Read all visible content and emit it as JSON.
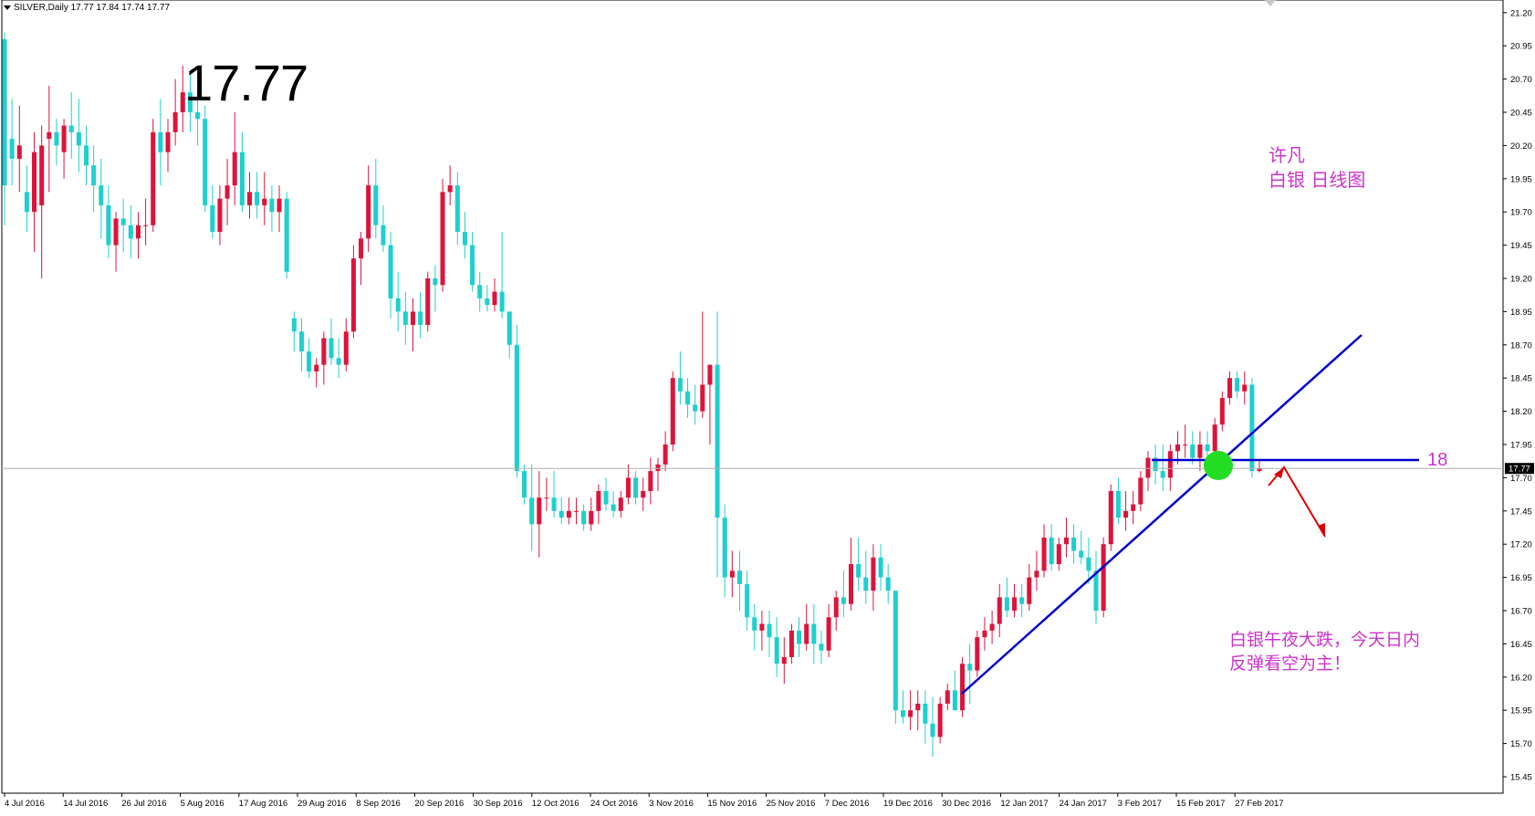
{
  "header": {
    "symbol_info": "SILVER,Daily  17.77 17.84 17.74 17.77"
  },
  "annotations": {
    "big_price": "17.77",
    "author": "许凡",
    "chart_title": "白银 日线图",
    "comment_line1": "白银午夜大跌，今天日内",
    "comment_line2": "反弹看空为主！",
    "level_label": "18"
  },
  "price_scale": {
    "labels": [
      "21.20",
      "20.95",
      "20.70",
      "20.45",
      "20.20",
      "19.95",
      "19.70",
      "19.45",
      "19.20",
      "18.95",
      "18.70",
      "18.45",
      "18.20",
      "17.95",
      "17.70",
      "17.45",
      "17.20",
      "16.95",
      "16.70",
      "16.45",
      "16.20",
      "15.95",
      "15.70",
      "15.45"
    ],
    "current_price": "17.77"
  },
  "time_scale": {
    "labels": [
      "4 Jul 2016",
      "14 Jul 2016",
      "26 Jul 2016",
      "5 Aug 2016",
      "17 Aug 2016",
      "29 Aug 2016",
      "8 Sep 2016",
      "20 Sep 2016",
      "30 Sep 2016",
      "12 Oct 2016",
      "24 Oct 2016",
      "3 Nov 2016",
      "15 Nov 2016",
      "25 Nov 2016",
      "7 Dec 2016",
      "19 Dec 2016",
      "30 Dec 2016",
      "12 Jan 2017",
      "24 Jan 2017",
      "3 Feb 2017",
      "15 Feb 2017",
      "27 Feb 2017"
    ]
  },
  "colors": {
    "bull": "#dc143c",
    "bear": "#1fcfcf",
    "line": "#0000cc",
    "text_accent": "#cc33cc",
    "marker": "#22dd22",
    "arrow": "#dd0000",
    "current_line": "#b0b0b0"
  },
  "chart_data": {
    "type": "candlestick",
    "symbol": "SILVER",
    "timeframe": "Daily",
    "ylim": [
      15.4,
      21.3
    ],
    "ohlc": [
      [
        21.0,
        21.05,
        19.6,
        19.9
      ],
      [
        20.25,
        20.55,
        19.9,
        20.1
      ],
      [
        20.1,
        20.5,
        19.85,
        20.2
      ],
      [
        19.85,
        20.05,
        19.55,
        19.7
      ],
      [
        19.7,
        20.3,
        19.4,
        20.15
      ],
      [
        19.75,
        20.35,
        19.2,
        20.2
      ],
      [
        20.25,
        20.65,
        19.85,
        20.3
      ],
      [
        20.3,
        20.4,
        20.05,
        20.2
      ],
      [
        20.15,
        20.4,
        19.95,
        20.35
      ],
      [
        20.35,
        20.6,
        20.1,
        20.3
      ],
      [
        20.3,
        20.55,
        20.0,
        20.2
      ],
      [
        20.2,
        20.35,
        19.9,
        20.05
      ],
      [
        20.05,
        20.2,
        19.7,
        19.9
      ],
      [
        19.9,
        20.1,
        19.5,
        19.75
      ],
      [
        19.75,
        19.9,
        19.35,
        19.45
      ],
      [
        19.45,
        19.7,
        19.25,
        19.65
      ],
      [
        19.65,
        19.8,
        19.4,
        19.6
      ],
      [
        19.6,
        19.75,
        19.35,
        19.5
      ],
      [
        19.5,
        19.7,
        19.35,
        19.6
      ],
      [
        19.6,
        19.8,
        19.45,
        19.6
      ],
      [
        19.6,
        20.4,
        19.55,
        20.3
      ],
      [
        20.3,
        20.55,
        19.9,
        20.15
      ],
      [
        20.15,
        20.4,
        20.0,
        20.3
      ],
      [
        20.3,
        20.7,
        20.2,
        20.45
      ],
      [
        20.45,
        20.8,
        20.3,
        20.6
      ],
      [
        20.6,
        20.75,
        20.3,
        20.45
      ],
      [
        20.45,
        20.6,
        20.2,
        20.4
      ],
      [
        20.4,
        20.5,
        19.7,
        19.75
      ],
      [
        19.75,
        19.9,
        19.5,
        19.55
      ],
      [
        19.55,
        19.9,
        19.45,
        19.8
      ],
      [
        19.8,
        20.1,
        19.6,
        19.9
      ],
      [
        19.9,
        20.45,
        19.75,
        20.15
      ],
      [
        20.15,
        20.3,
        19.7,
        19.75
      ],
      [
        19.75,
        20.0,
        19.65,
        19.85
      ],
      [
        19.85,
        20.0,
        19.65,
        19.75
      ],
      [
        19.75,
        20.0,
        19.6,
        19.8
      ],
      [
        19.8,
        19.9,
        19.55,
        19.7
      ],
      [
        19.7,
        19.9,
        19.55,
        19.8
      ],
      [
        19.8,
        19.85,
        19.2,
        19.25
      ],
      [
        18.9,
        18.95,
        18.65,
        18.8
      ],
      [
        18.8,
        18.9,
        18.5,
        18.65
      ],
      [
        18.65,
        18.75,
        18.45,
        18.5
      ],
      [
        18.5,
        18.6,
        18.38,
        18.55
      ],
      [
        18.55,
        18.8,
        18.4,
        18.75
      ],
      [
        18.75,
        18.9,
        18.55,
        18.6
      ],
      [
        18.6,
        18.75,
        18.45,
        18.55
      ],
      [
        18.55,
        18.9,
        18.5,
        18.8
      ],
      [
        18.8,
        19.45,
        18.75,
        19.35
      ],
      [
        19.35,
        19.55,
        19.15,
        19.5
      ],
      [
        19.5,
        20.05,
        19.4,
        19.9
      ],
      [
        19.9,
        20.1,
        19.5,
        19.6
      ],
      [
        19.6,
        19.75,
        19.4,
        19.45
      ],
      [
        19.45,
        19.55,
        18.9,
        19.05
      ],
      [
        19.05,
        19.25,
        18.8,
        18.95
      ],
      [
        18.95,
        19.1,
        18.7,
        18.85
      ],
      [
        18.85,
        19.05,
        18.65,
        18.95
      ],
      [
        18.95,
        19.1,
        18.75,
        18.85
      ],
      [
        18.85,
        19.25,
        18.8,
        19.2
      ],
      [
        19.2,
        19.3,
        18.95,
        19.15
      ],
      [
        19.15,
        19.95,
        19.1,
        19.85
      ],
      [
        19.85,
        20.05,
        19.75,
        19.9
      ],
      [
        19.9,
        20.0,
        19.45,
        19.55
      ],
      [
        19.55,
        19.7,
        19.35,
        19.45
      ],
      [
        19.45,
        19.55,
        19.1,
        19.15
      ],
      [
        19.15,
        19.25,
        18.95,
        19.05
      ],
      [
        19.05,
        19.15,
        18.95,
        19.0
      ],
      [
        19.0,
        19.2,
        18.95,
        19.1
      ],
      [
        19.1,
        19.55,
        18.9,
        18.95
      ],
      [
        18.95,
        18.95,
        18.6,
        18.7
      ],
      [
        18.7,
        18.85,
        17.7,
        17.75
      ],
      [
        17.75,
        17.8,
        17.5,
        17.55
      ],
      [
        17.55,
        17.8,
        17.15,
        17.35
      ],
      [
        17.35,
        17.75,
        17.1,
        17.55
      ],
      [
        17.55,
        17.7,
        17.45,
        17.55
      ],
      [
        17.55,
        17.75,
        17.4,
        17.45
      ],
      [
        17.45,
        17.55,
        17.35,
        17.4
      ],
      [
        17.4,
        17.55,
        17.35,
        17.45
      ],
      [
        17.45,
        17.55,
        17.35,
        17.45
      ],
      [
        17.45,
        17.5,
        17.3,
        17.35
      ],
      [
        17.35,
        17.55,
        17.3,
        17.45
      ],
      [
        17.45,
        17.65,
        17.35,
        17.6
      ],
      [
        17.6,
        17.7,
        17.45,
        17.5
      ],
      [
        17.5,
        17.6,
        17.4,
        17.45
      ],
      [
        17.45,
        17.6,
        17.4,
        17.55
      ],
      [
        17.55,
        17.8,
        17.5,
        17.7
      ],
      [
        17.7,
        17.75,
        17.5,
        17.55
      ],
      [
        17.55,
        17.7,
        17.45,
        17.6
      ],
      [
        17.6,
        17.85,
        17.5,
        17.75
      ],
      [
        17.75,
        17.85,
        17.6,
        17.8
      ],
      [
        17.8,
        18.05,
        17.75,
        17.95
      ],
      [
        17.95,
        18.5,
        17.9,
        18.45
      ],
      [
        18.45,
        18.65,
        18.25,
        18.35
      ],
      [
        18.35,
        18.45,
        18.15,
        18.25
      ],
      [
        18.25,
        18.4,
        18.1,
        18.2
      ],
      [
        18.2,
        18.95,
        18.15,
        18.4
      ],
      [
        18.4,
        18.55,
        17.95,
        18.55
      ],
      [
        18.55,
        18.95,
        16.95,
        17.4
      ],
      [
        17.4,
        17.5,
        16.8,
        16.95
      ],
      [
        16.95,
        17.15,
        16.8,
        17.0
      ],
      [
        17.0,
        17.15,
        16.7,
        16.9
      ],
      [
        16.9,
        17.0,
        16.55,
        16.65
      ],
      [
        16.65,
        16.75,
        16.4,
        16.55
      ],
      [
        16.55,
        16.7,
        16.4,
        16.6
      ],
      [
        16.6,
        16.7,
        16.35,
        16.5
      ],
      [
        16.5,
        16.65,
        16.2,
        16.3
      ],
      [
        16.3,
        16.5,
        16.15,
        16.35
      ],
      [
        16.35,
        16.6,
        16.3,
        16.55
      ],
      [
        16.55,
        16.65,
        16.35,
        16.45
      ],
      [
        16.45,
        16.75,
        16.4,
        16.6
      ],
      [
        16.6,
        16.75,
        16.3,
        16.45
      ],
      [
        16.45,
        16.55,
        16.3,
        16.4
      ],
      [
        16.4,
        16.75,
        16.35,
        16.65
      ],
      [
        16.65,
        16.85,
        16.55,
        16.8
      ],
      [
        16.8,
        17.0,
        16.65,
        16.75
      ],
      [
        16.75,
        17.25,
        16.7,
        17.05
      ],
      [
        17.05,
        17.25,
        16.85,
        16.95
      ],
      [
        16.95,
        17.15,
        16.75,
        16.85
      ],
      [
        16.85,
        17.2,
        16.7,
        17.1
      ],
      [
        17.1,
        17.2,
        16.85,
        16.95
      ],
      [
        16.95,
        17.05,
        16.75,
        16.85
      ],
      [
        16.85,
        16.85,
        15.85,
        15.95
      ],
      [
        15.95,
        16.1,
        15.85,
        15.9
      ],
      [
        15.9,
        16.1,
        15.8,
        15.95
      ],
      [
        15.95,
        16.1,
        15.8,
        16.0
      ],
      [
        16.0,
        16.1,
        15.7,
        15.85
      ],
      [
        15.85,
        16.05,
        15.6,
        15.75
      ],
      [
        15.75,
        16.05,
        15.7,
        16.0
      ],
      [
        16.0,
        16.15,
        15.95,
        16.1
      ],
      [
        16.1,
        16.25,
        15.95,
        15.95
      ],
      [
        15.95,
        16.35,
        15.9,
        16.3
      ],
      [
        16.3,
        16.45,
        16.0,
        16.25
      ],
      [
        16.25,
        16.55,
        16.2,
        16.5
      ],
      [
        16.5,
        16.65,
        16.4,
        16.55
      ],
      [
        16.55,
        16.7,
        16.45,
        16.6
      ],
      [
        16.6,
        16.9,
        16.5,
        16.8
      ],
      [
        16.8,
        16.95,
        16.65,
        16.7
      ],
      [
        16.7,
        16.9,
        16.65,
        16.8
      ],
      [
        16.8,
        16.9,
        16.65,
        16.75
      ],
      [
        16.75,
        17.05,
        16.7,
        16.95
      ],
      [
        16.95,
        17.15,
        16.85,
        17.0
      ],
      [
        17.0,
        17.35,
        16.95,
        17.25
      ],
      [
        17.25,
        17.35,
        17.0,
        17.05
      ],
      [
        17.05,
        17.25,
        17.0,
        17.2
      ],
      [
        17.2,
        17.4,
        17.1,
        17.25
      ],
      [
        17.25,
        17.35,
        17.05,
        17.15
      ],
      [
        17.15,
        17.3,
        17.05,
        17.1
      ],
      [
        17.1,
        17.25,
        16.9,
        17.0
      ],
      [
        17.0,
        17.15,
        16.6,
        16.7
      ],
      [
        16.7,
        17.25,
        16.65,
        17.2
      ],
      [
        17.2,
        17.65,
        17.15,
        17.6
      ],
      [
        17.6,
        17.7,
        17.35,
        17.4
      ],
      [
        17.4,
        17.6,
        17.3,
        17.45
      ],
      [
        17.45,
        17.6,
        17.35,
        17.5
      ],
      [
        17.5,
        17.75,
        17.45,
        17.7
      ],
      [
        17.7,
        17.9,
        17.6,
        17.85
      ],
      [
        17.85,
        17.95,
        17.65,
        17.75
      ],
      [
        17.75,
        17.95,
        17.6,
        17.7
      ],
      [
        17.7,
        17.95,
        17.6,
        17.9
      ],
      [
        17.9,
        18.05,
        17.8,
        17.95
      ],
      [
        17.95,
        18.1,
        17.85,
        17.95
      ],
      [
        17.95,
        18.05,
        17.8,
        17.85
      ],
      [
        17.85,
        18.05,
        17.75,
        17.95
      ],
      [
        17.95,
        18.05,
        17.85,
        17.9
      ],
      [
        17.9,
        18.15,
        17.85,
        18.1
      ],
      [
        18.1,
        18.35,
        18.05,
        18.3
      ],
      [
        18.3,
        18.5,
        18.25,
        18.45
      ],
      [
        18.45,
        18.5,
        18.3,
        18.35
      ],
      [
        18.35,
        18.5,
        18.25,
        18.4
      ],
      [
        18.4,
        18.45,
        17.7,
        17.75
      ],
      [
        17.75,
        17.84,
        17.74,
        17.77
      ]
    ]
  }
}
